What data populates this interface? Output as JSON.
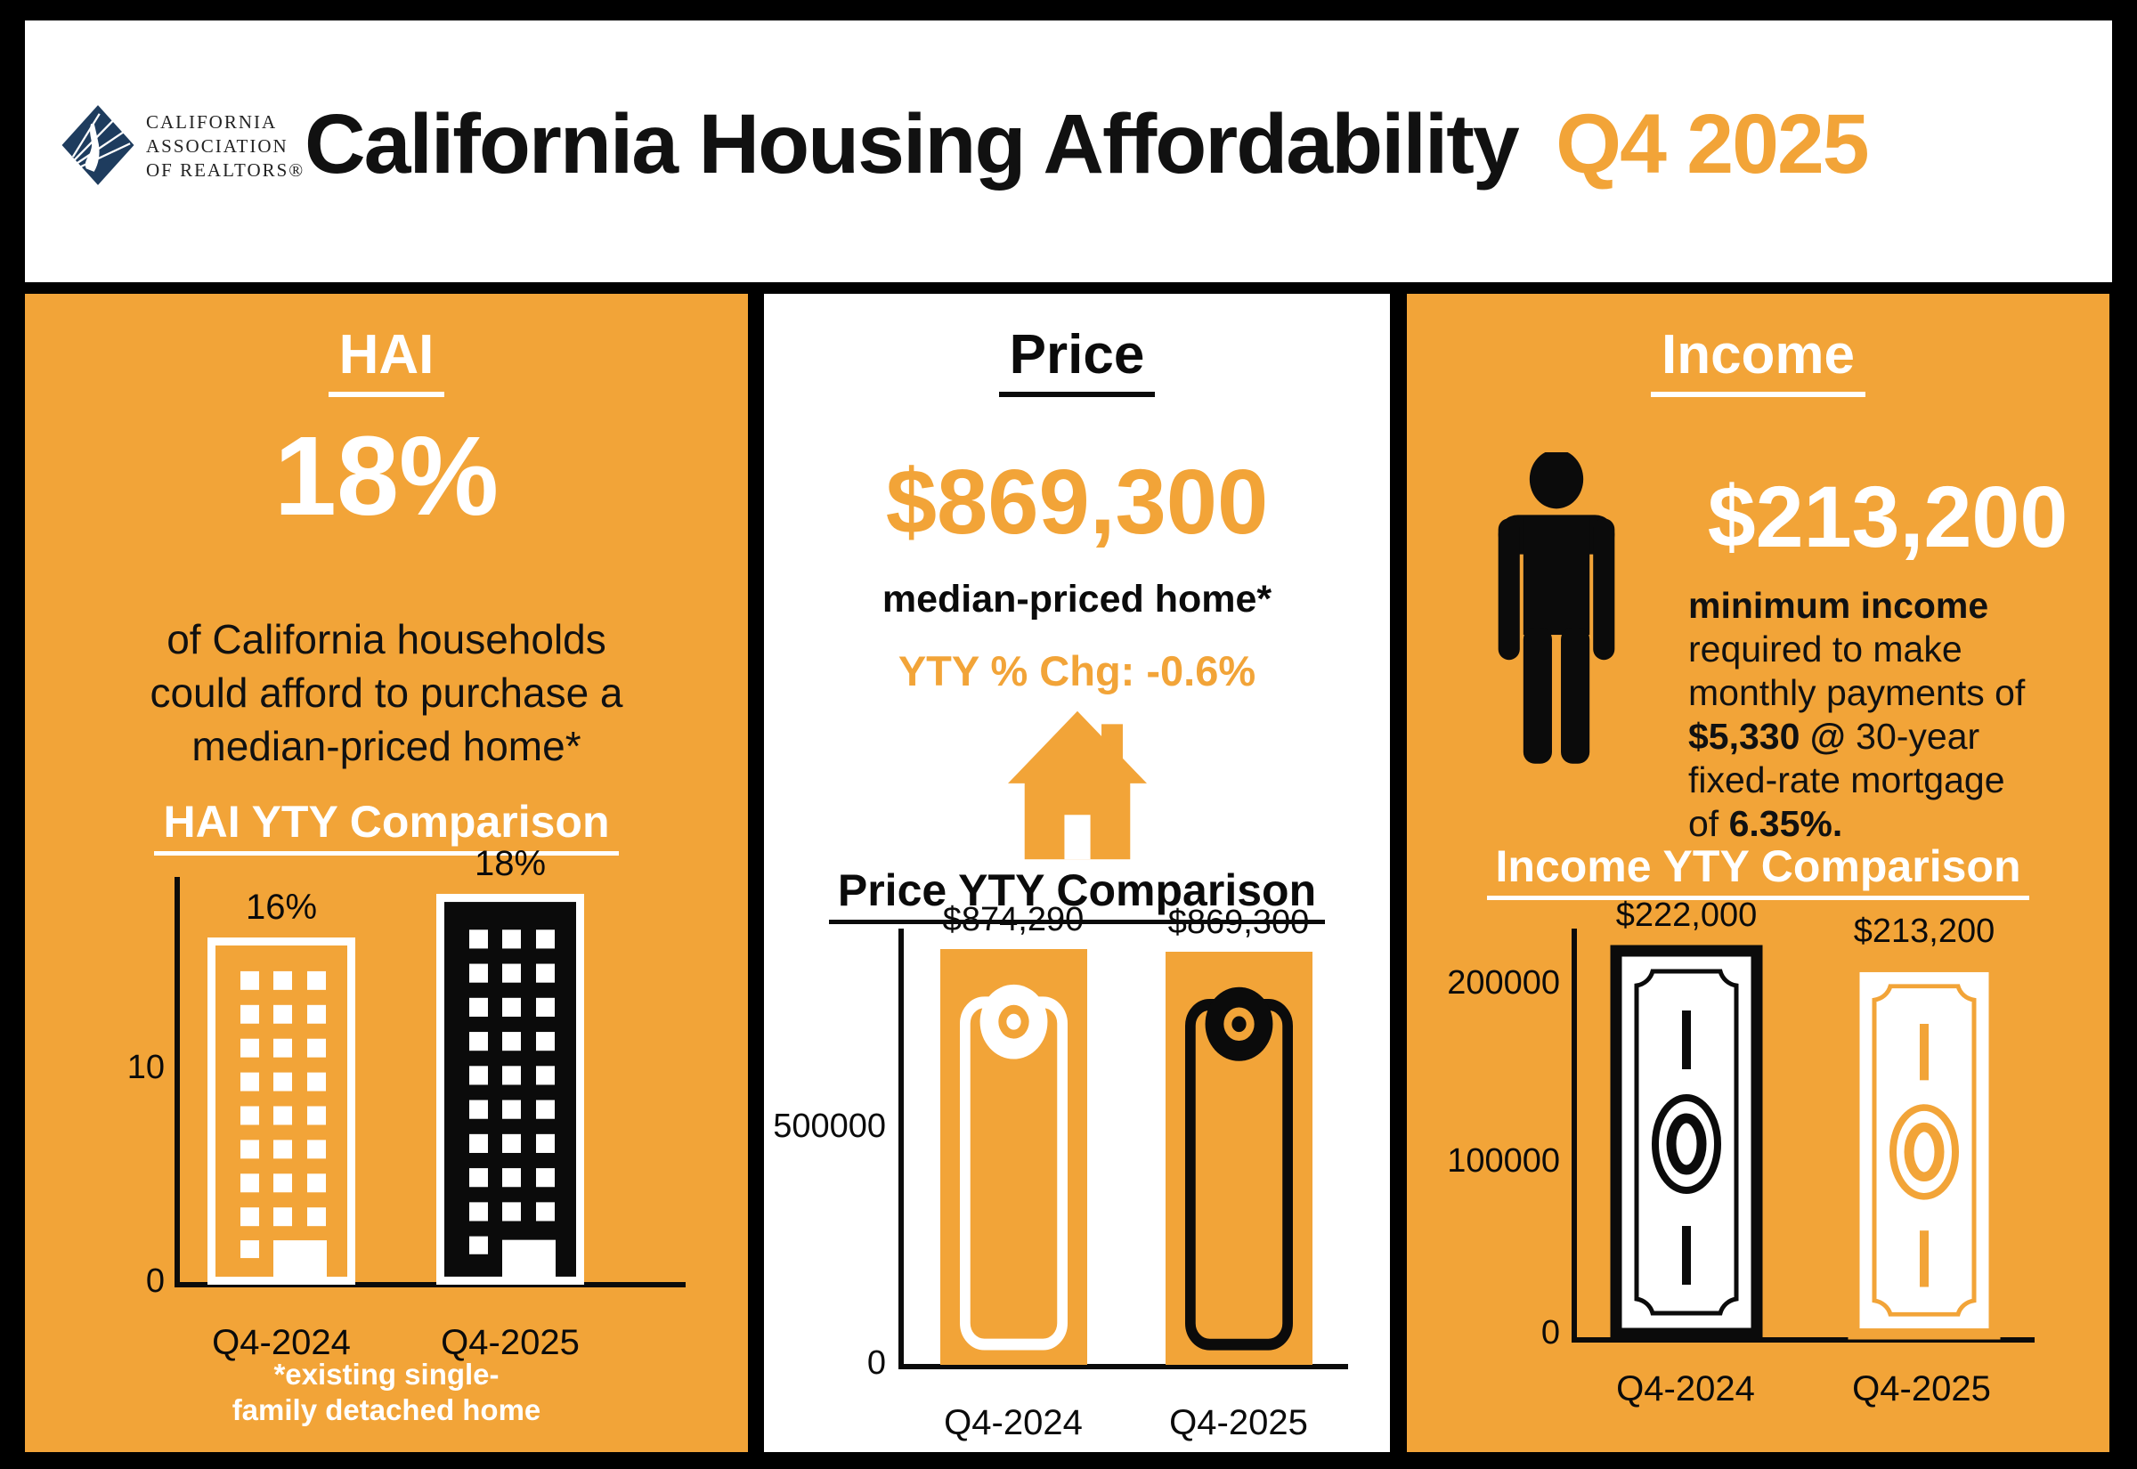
{
  "colors": {
    "accent": "#F2A438",
    "navy": "#1E3C5E",
    "black": "#0b0b0b",
    "white": "#ffffff"
  },
  "header": {
    "logo_line1": "CALIFORNIA",
    "logo_line2": "ASSOCIATION",
    "logo_line3": "OF REALTORS®",
    "title": "California Housing Affordability",
    "title_accent": "Q4 2025"
  },
  "hai": {
    "heading": "HAI",
    "value": "18%",
    "desc_line1": "of California households",
    "desc_line2": "could afford to purchase a",
    "desc_line3": "median-priced home*",
    "footnote1": "*existing single-",
    "footnote2": "family detached home"
  },
  "price": {
    "heading": "Price",
    "value": "$869,300",
    "subtitle": "median-priced home*",
    "yty_change": "YTY % Chg: -0.6%"
  },
  "income": {
    "heading": "Income",
    "value": "$213,200",
    "desc_line1": "minimum income",
    "desc_line2": "required to make",
    "desc_line3": "monthly payments of",
    "desc_line4_bold": "$5,330 @",
    "desc_line4_rest": " 30-year",
    "desc_line5": "fixed-rate mortgage",
    "desc_line6_pre": "of ",
    "desc_line6_bold": "6.35%."
  },
  "chart_data": [
    {
      "id": "hai-yty",
      "type": "bar",
      "title": "HAI YTY Comparison",
      "categories": [
        "Q4-2024",
        "Q4-2025"
      ],
      "values": [
        16,
        18
      ],
      "value_labels": [
        "16%",
        "18%"
      ],
      "unit": "percent",
      "ylim": [
        0,
        19
      ],
      "yticks": [
        0,
        10
      ],
      "ytick_labels": [
        "0",
        "10"
      ],
      "legend": "none",
      "grid": false
    },
    {
      "id": "price-yty",
      "type": "bar",
      "title": "Price YTY Comparison",
      "categories": [
        "Q4-2024",
        "Q4-2025"
      ],
      "values": [
        874290,
        869300
      ],
      "value_labels": [
        "$874,290",
        "$869,300"
      ],
      "unit": "USD",
      "ylim": [
        0,
        930000
      ],
      "yticks": [
        0,
        500000
      ],
      "ytick_labels": [
        "0",
        "500000"
      ],
      "legend": "none",
      "grid": false
    },
    {
      "id": "income-yty",
      "type": "bar",
      "title": "Income YTY Comparison",
      "categories": [
        "Q4-2024",
        "Q4-2025"
      ],
      "values": [
        222000,
        213200
      ],
      "value_labels": [
        "$222,000",
        "$213,200"
      ],
      "unit": "USD",
      "ylim": [
        0,
        235000
      ],
      "yticks": [
        0,
        100000,
        200000
      ],
      "ytick_labels": [
        "0",
        "100000",
        "200000"
      ],
      "legend": "none",
      "grid": false
    }
  ]
}
